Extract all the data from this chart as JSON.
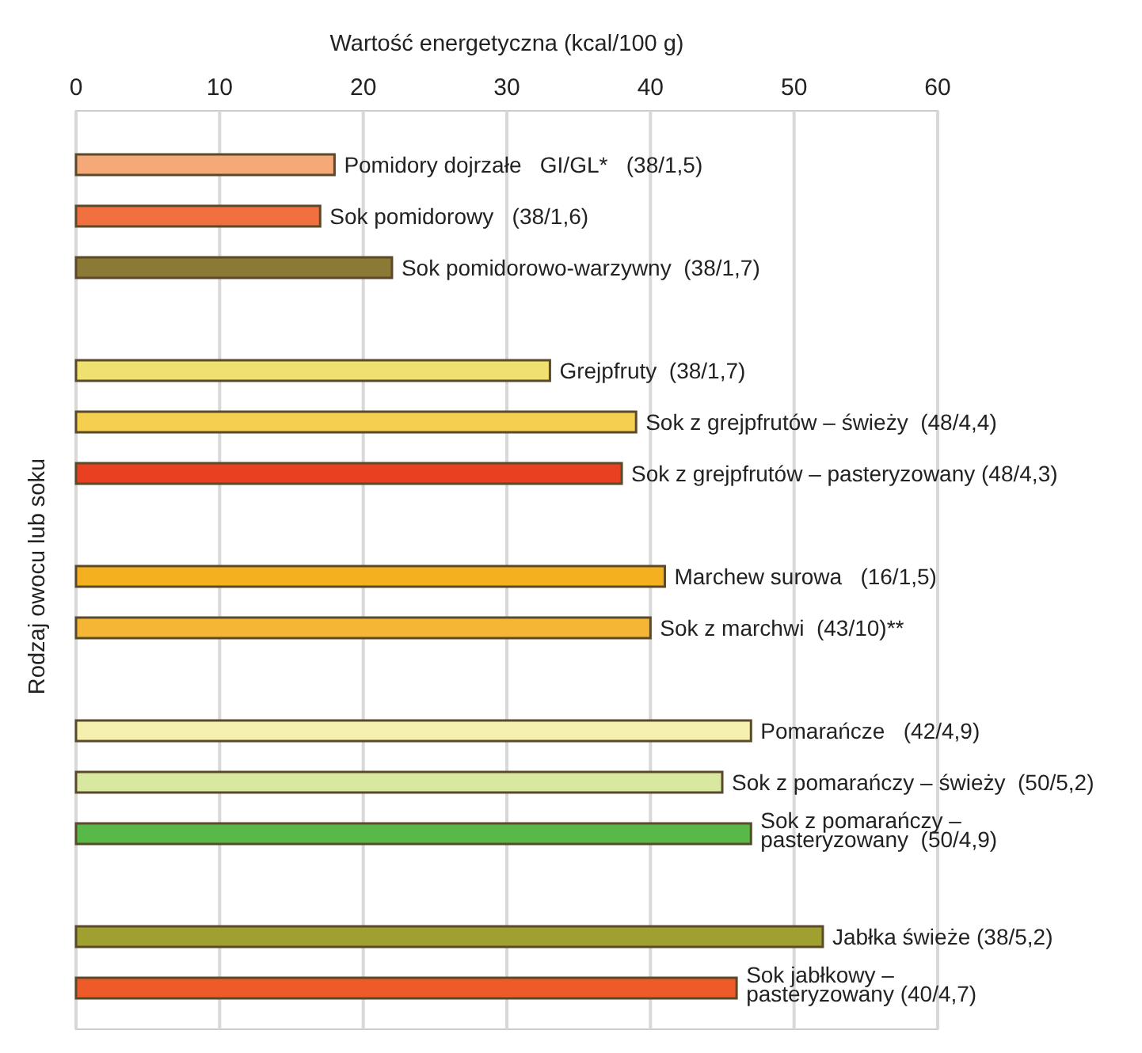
{
  "chart_data": {
    "type": "bar",
    "orientation": "horizontal",
    "xlabel": "Wartość energetyczna (kcal/100 g)",
    "ylabel": "Rodzaj owocu lub soku",
    "categories": [
      "Pomidory dojrzałe   GI/GL*   (38/1,5)",
      "Sok pomidorowy   (38/1,6)",
      "Sok pomidorowo-warzywny  (38/1,7)",
      null,
      "Grejpfruty  (38/1,7)",
      "Sok z grejpfrutów – świeży  (48/4,4)",
      "Sok z grejpfrutów – pasteryzowany (48/4,3)",
      null,
      "Marchew surowa   (16/1,5)",
      "Sok z marchwi  (43/10)**",
      null,
      "Pomarańcze   (42/4,9)",
      "Sok z pomarańczy – świeży  (50/5,2)",
      "Sok z pomarańczy –\npasteryzowany  (50/4,9)",
      null,
      "Jabłka świeże (38/5,2)",
      "Sok jabłkowy –\npasteryzowany (40/4,7)"
    ],
    "values": [
      18,
      17,
      22,
      null,
      33,
      39,
      38,
      null,
      41,
      40,
      null,
      47,
      45,
      47,
      null,
      52,
      46
    ],
    "colors": [
      "#f5a878",
      "#f07040",
      "#8a7a35",
      null,
      "#f0e070",
      "#f5d050",
      "#e84020",
      null,
      "#f5b020",
      "#f5b535",
      null,
      "#f5f0b0",
      "#d8e8a0",
      "#58b848",
      null,
      "#a0a030",
      "#ee5a28"
    ],
    "xlim": [
      0,
      60
    ],
    "xticks": [
      0,
      10,
      20,
      30,
      40,
      50,
      60
    ],
    "grid": "x"
  }
}
